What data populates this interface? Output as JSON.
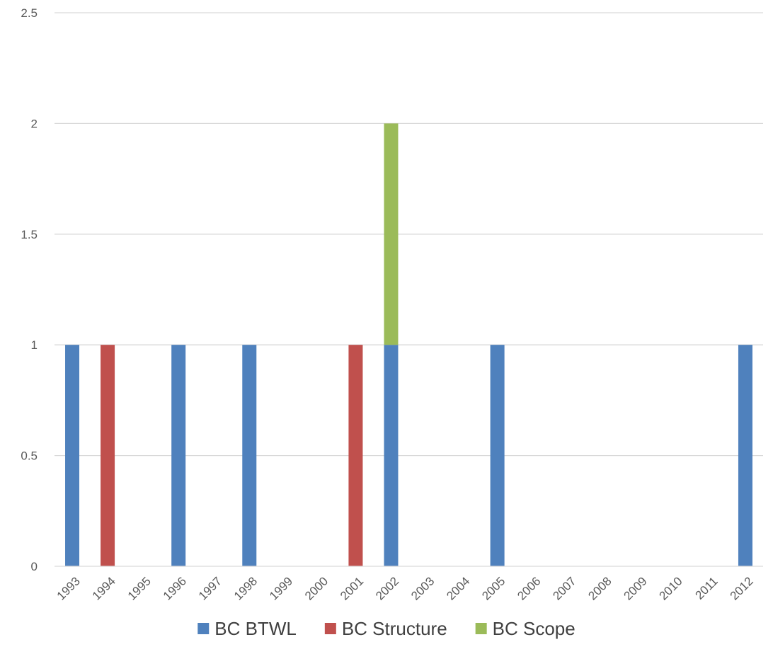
{
  "chart_data": {
    "type": "bar",
    "stacked": true,
    "categories": [
      "1993",
      "1994",
      "1995",
      "1996",
      "1997",
      "1998",
      "1999",
      "2000",
      "2001",
      "2002",
      "2003",
      "2004",
      "2005",
      "2006",
      "2007",
      "2008",
      "2009",
      "2010",
      "2011",
      "2012"
    ],
    "series": [
      {
        "name": "BC BTWL",
        "color": "#4f81bd",
        "values": [
          1,
          0,
          0,
          1,
          0,
          1,
          0,
          0,
          0,
          1,
          0,
          0,
          1,
          0,
          0,
          0,
          0,
          0,
          0,
          1
        ]
      },
      {
        "name": "BC Structure",
        "color": "#c0504d",
        "values": [
          0,
          1,
          0,
          0,
          0,
          0,
          0,
          0,
          1,
          0,
          0,
          0,
          0,
          0,
          0,
          0,
          0,
          0,
          0,
          0
        ]
      },
      {
        "name": "BC Scope",
        "color": "#9bbb59",
        "values": [
          0,
          0,
          0,
          0,
          0,
          0,
          0,
          0,
          0,
          1,
          0,
          0,
          0,
          0,
          0,
          0,
          0,
          0,
          0,
          0
        ]
      }
    ],
    "y_ticks": [
      "0",
      "0.5",
      "1",
      "1.5",
      "2",
      "2.5"
    ],
    "ylim": [
      0,
      2.5
    ],
    "grid": true,
    "gridline_color": "#d9d9d9",
    "legend_position": "bottom",
    "title": "",
    "xlabel": "",
    "ylabel": ""
  }
}
